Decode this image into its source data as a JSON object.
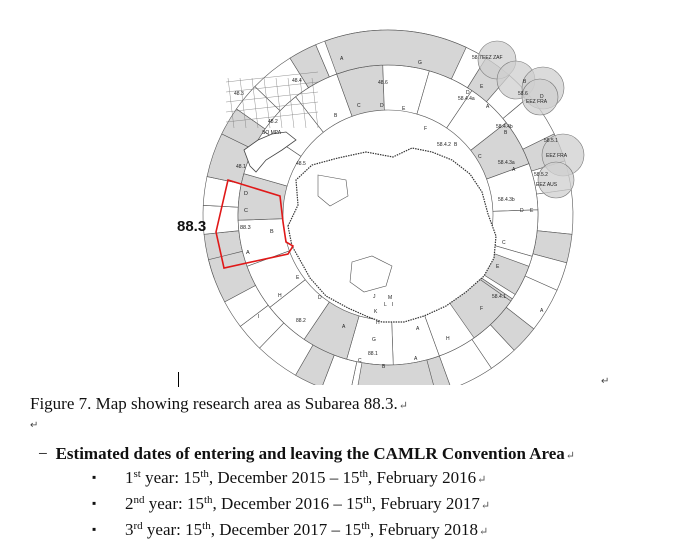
{
  "figure": {
    "subarea_label": "88.3",
    "map_labels": {
      "a48_3": "48.3",
      "a48_4": "48.4",
      "a48_2": "48.2",
      "so_mpa": "SO MPA",
      "a48_1": "48.1",
      "a48_5": "48.5",
      "a48_6": "48.6",
      "a58_4_4a": "58.4.4a",
      "a58_4_4b": "58.4.4b",
      "a58_4_2": "58.4.2",
      "a58_4_3a": "58.4.3a",
      "a58_4_3b": "58.4.3b",
      "a58_4_1": "58.4.1",
      "a58_5_1": "58.5.1",
      "a58_5_2": "58.5.2",
      "a58_6": "58.6",
      "a58_7": "58.7",
      "eez_zaf": "EEZ ZAF",
      "eez_fra": "EEZ FRA",
      "eez_aus": "EEZ AUS",
      "a88_1": "88.1",
      "a88_2": "88.2",
      "a88_3": "88.3",
      "ssru_a": "A",
      "ssru_b": "B",
      "ssru_c": "C",
      "ssru_d": "D",
      "ssru_e": "E",
      "ssru_f": "F",
      "ssru_g": "G",
      "ssru_h": "H",
      "ssru_i": "I",
      "ssru_j": "J",
      "ssru_k": "K",
      "ssru_l": "L",
      "ssru_m": "M"
    }
  },
  "caption": "Figure 7. Map showing research area as Subarea 88.3.",
  "heading": "Estimated dates of entering and leaving the CAMLR Convention Area",
  "dates": [
    {
      "n": "1",
      "ord": "st",
      "pre": " year: 15",
      "sup1": "th",
      "mid": ", December 2015 – 15",
      "sup2": "th",
      "post": ", February 2016"
    },
    {
      "n": "2",
      "ord": "nd",
      "pre": " year: 15",
      "sup1": "th",
      "mid": ", December 2016 – 15",
      "sup2": "th",
      "post": ", February 2017"
    },
    {
      "n": "3",
      "ord": "rd",
      "pre": " year: 15",
      "sup1": "th",
      "mid": ", December 2017 – 15",
      "sup2": "th",
      "post": ", February 2018"
    }
  ],
  "marks": {
    "bullet": "▪",
    "dash": "−",
    "return": "↵"
  },
  "colors": {
    "subarea_highlight": "#e01818",
    "shaded_ssru": "#d6d6d6",
    "eez_circle": "#c8c8c8"
  }
}
